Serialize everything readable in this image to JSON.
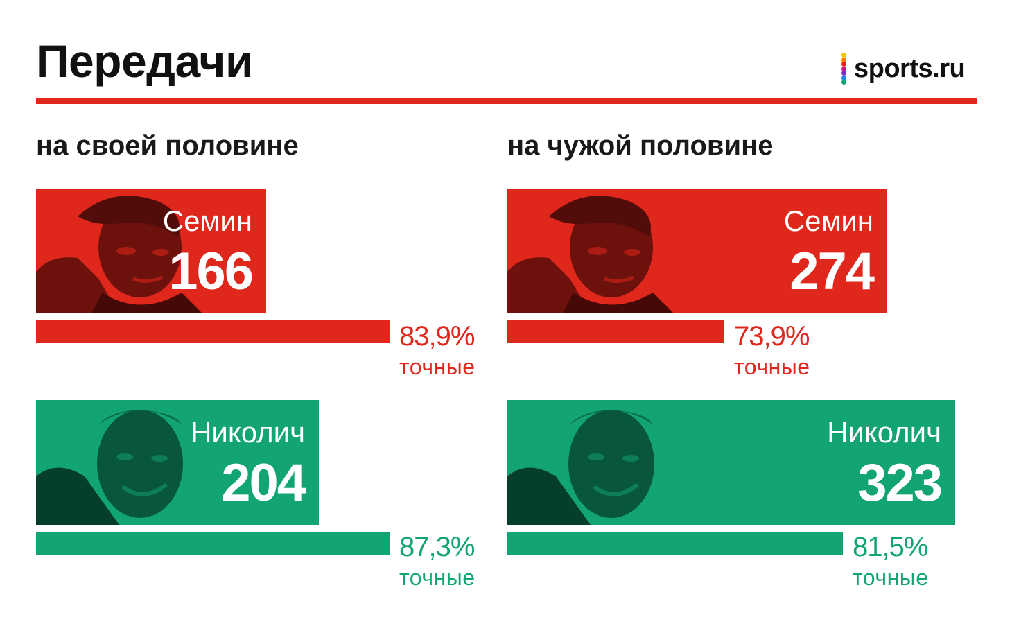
{
  "title": "Передачи",
  "logo": {
    "text": "sports.ru",
    "dot_colors": [
      "#f5c400",
      "#ff7a00",
      "#e0271c",
      "#c2188a",
      "#7a2fc4",
      "#1e88e5",
      "#12a572"
    ]
  },
  "colors": {
    "accent": "#e0271c",
    "semin": "#e0271c",
    "nikolic": "#12a572"
  },
  "accuracy_label": "точные",
  "chart_data": [
    {
      "type": "bar",
      "title": "на своей половине",
      "series": [
        {
          "name": "Семин",
          "passes": 166,
          "accuracy": 83.9,
          "accuracy_text": "83,9%",
          "color": "#e0271c"
        },
        {
          "name": "Николич",
          "passes": 204,
          "accuracy": 87.3,
          "accuracy_text": "87,3%",
          "color": "#12a572"
        }
      ]
    },
    {
      "type": "bar",
      "title": "на чужой половине",
      "series": [
        {
          "name": "Семин",
          "passes": 274,
          "accuracy": 73.9,
          "accuracy_text": "73,9%",
          "color": "#e0271c"
        },
        {
          "name": "Николич",
          "passes": 323,
          "accuracy": 81.5,
          "accuracy_text": "81,5%",
          "color": "#12a572"
        }
      ]
    }
  ]
}
